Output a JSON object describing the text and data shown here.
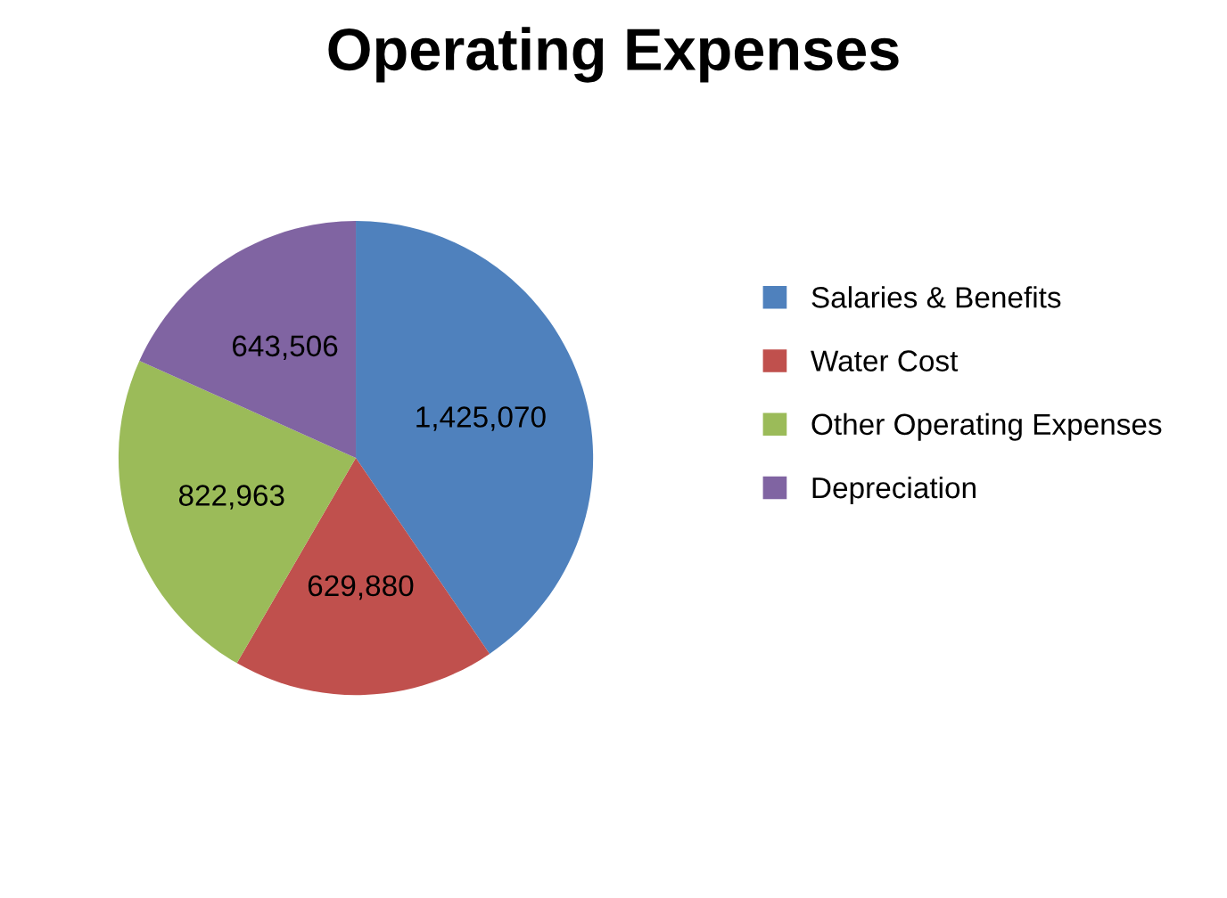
{
  "chart_data": {
    "type": "pie",
    "title": "Operating Expenses",
    "categories": [
      "Salaries & Benefits",
      "Water Cost",
      "Other Operating Expenses",
      "Depreciation"
    ],
    "values": [
      1425070,
      629880,
      822963,
      643506
    ],
    "colors": [
      "#4f81bd",
      "#c0504d",
      "#9bbb59",
      "#8064a2"
    ],
    "value_labels": [
      "1,425,070",
      "629,880",
      "822,963",
      "643,506"
    ],
    "legend": "right"
  }
}
